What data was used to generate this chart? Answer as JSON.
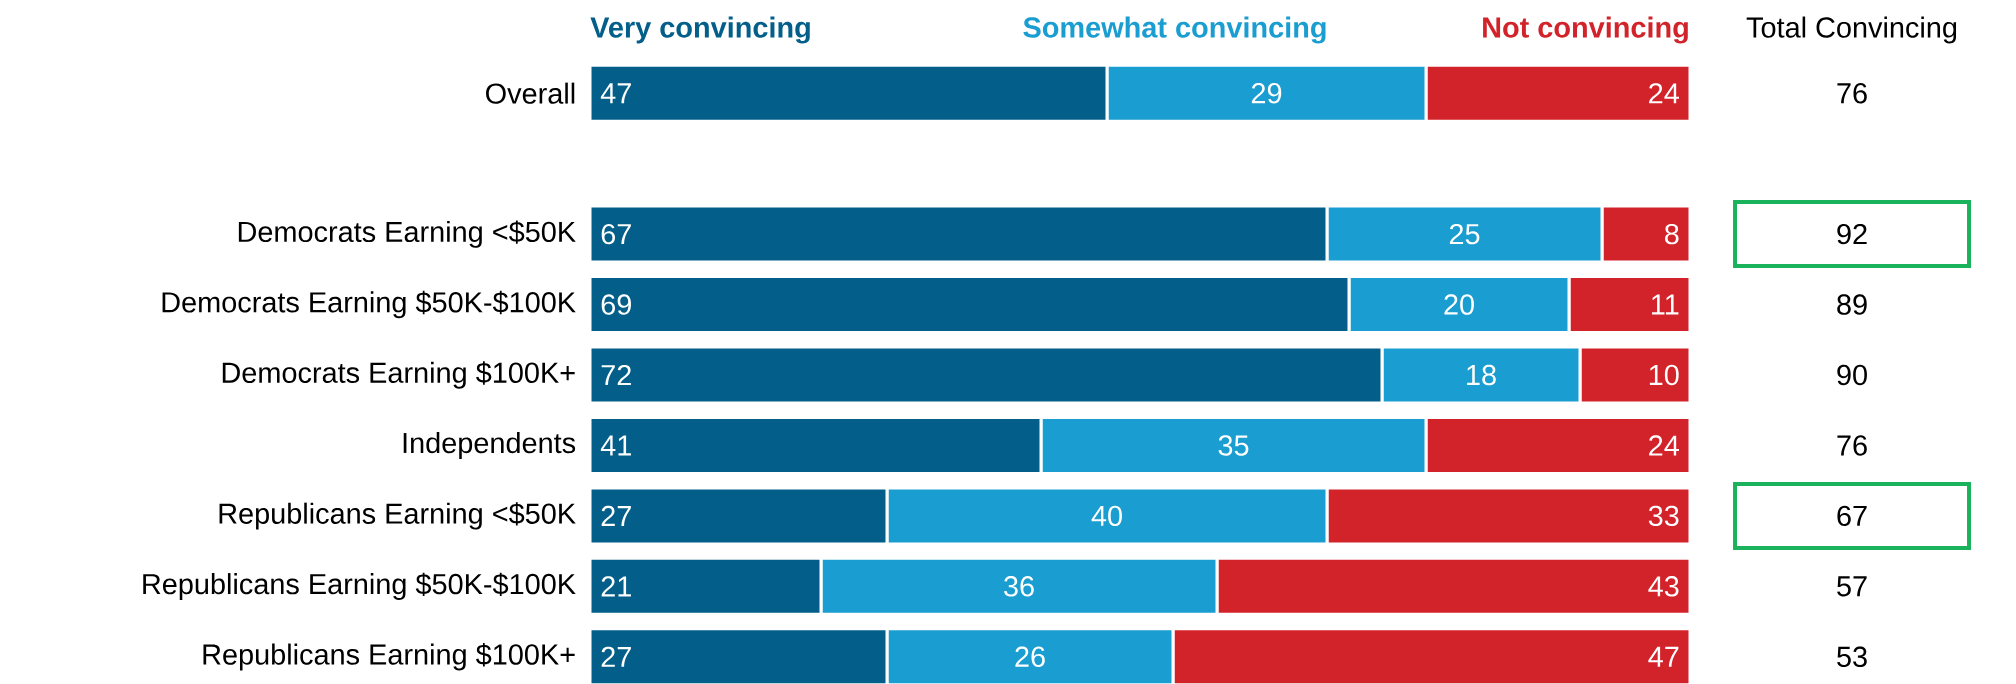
{
  "chart_data": {
    "type": "bar",
    "orientation": "horizontal",
    "stacked": true,
    "data_labels": true,
    "legend": "top",
    "tick_labels": "y",
    "categories": [
      "Overall",
      null,
      "Democrats Earning <$50K",
      "Democrats Earning $50K-$100K",
      "Democrats Earning $100K+",
      "Independents",
      "Republicans Earning <$50K",
      "Republicans Earning $50K-$100K",
      "Republicans Earning $100K+"
    ],
    "series": [
      {
        "name": "Very convincing",
        "color": "#035f8a",
        "values": [
          47,
          null,
          67,
          69,
          72,
          41,
          27,
          21,
          27
        ]
      },
      {
        "name": "Somewhat convincing",
        "color": "#1a9dd0",
        "values": [
          29,
          null,
          25,
          20,
          18,
          35,
          40,
          36,
          26
        ]
      },
      {
        "name": "Not convincing",
        "color": "#d3232a",
        "values": [
          24,
          null,
          8,
          11,
          10,
          24,
          33,
          43,
          47
        ]
      }
    ],
    "annotations": [
      "Total Convincing",
      "76",
      "92",
      "89",
      "90",
      "76",
      "67",
      "57",
      "53"
    ]
  }
}
